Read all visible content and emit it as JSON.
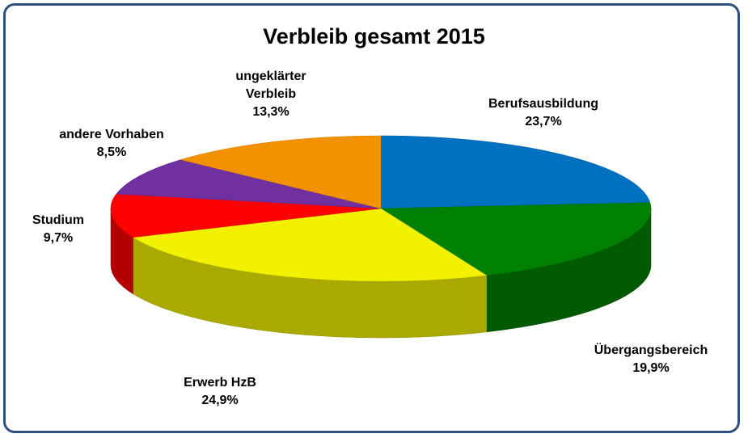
{
  "chart_data": {
    "type": "pie",
    "title": "Verbleib gesamt 2015",
    "categories": [
      "Berufsausbildung",
      "Übergangsbereich",
      "Erwerb HzB",
      "Studium",
      "andere Vorhaben",
      "ungeklärter Verbleib"
    ],
    "values": [
      23.7,
      19.9,
      24.9,
      9.7,
      8.5,
      13.3
    ],
    "value_labels": [
      "23,7%",
      "19,9%",
      "24,9%",
      "9,7%",
      "8,5%",
      "13,3%"
    ],
    "colors": [
      "#0070c0",
      "#008000",
      "#f2f200",
      "#ff0000",
      "#7030a0",
      "#f39200"
    ]
  }
}
